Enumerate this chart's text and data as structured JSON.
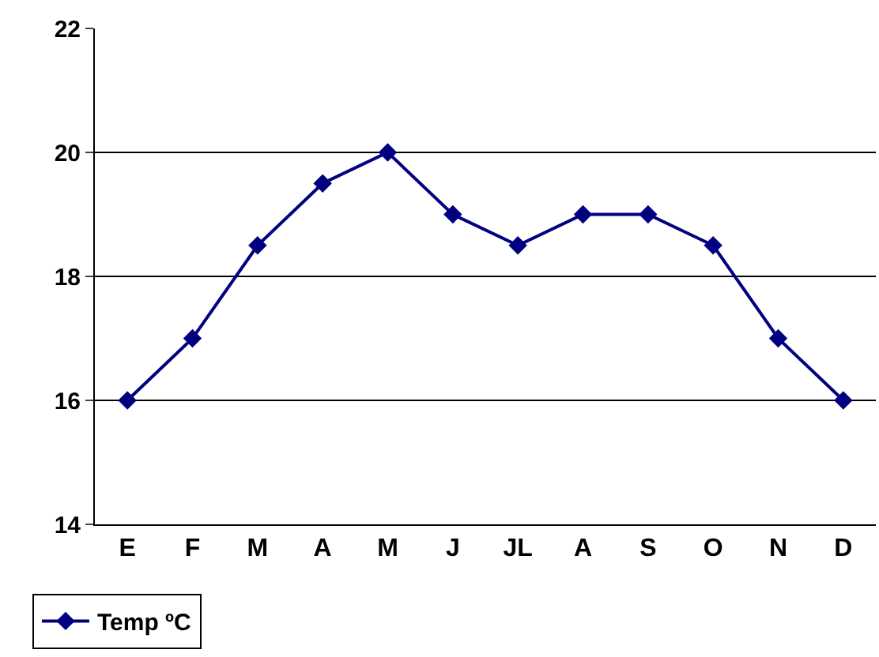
{
  "chart_data": {
    "type": "line",
    "categories": [
      "E",
      "F",
      "M",
      "A",
      "M",
      "J",
      "JL",
      "A",
      "S",
      "O",
      "N",
      "D"
    ],
    "series": [
      {
        "name": "Temp ºC",
        "color": "#000080",
        "values": [
          16,
          17,
          18.5,
          19.5,
          20,
          19,
          18.5,
          19,
          19,
          18.5,
          17,
          16
        ]
      }
    ],
    "ylim": [
      14,
      22
    ],
    "yticks": [
      14,
      16,
      18,
      20,
      22
    ],
    "grid": "y",
    "legend": "bottom left",
    "marker": "diamond",
    "line_style": "solid"
  }
}
